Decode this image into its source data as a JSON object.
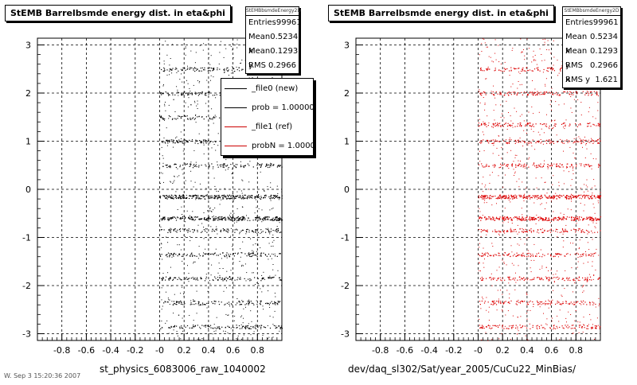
{
  "chart_data": [
    {
      "type": "scatter",
      "title": "StEMB Barrelbsmde energy dist. in eta&phi",
      "xlabel": "st_physics_6083006_raw_1040002",
      "ylabel": "",
      "xlim": [
        -1.0,
        1.0
      ],
      "ylim": [
        -3.14,
        3.14
      ],
      "x_ticks": [
        "-0.8",
        "-0.6",
        "-0.4",
        "-0.2",
        "-0",
        "0.2",
        "0.4",
        "0.6",
        "0.8"
      ],
      "y_ticks": [
        "-3",
        "-2",
        "-1",
        "0",
        "1",
        "2",
        "3"
      ],
      "grid": true,
      "color": "#000000",
      "series": [
        {
          "name": "_file0 (new)",
          "x_range": [
            0.0,
            1.0
          ],
          "y_range": [
            -3.14,
            3.14
          ],
          "bands_y": [
            -2.85,
            -2.35,
            -1.85,
            -1.35,
            -0.85,
            -0.6,
            -0.15,
            0.5,
            1.0,
            1.5,
            2.0,
            2.5
          ]
        }
      ],
      "stats": {
        "name": "StEMBbsmdeEnergy2D",
        "rows": [
          [
            "Entries",
            "99961"
          ],
          [
            "Mean x",
            "0.5234"
          ],
          [
            "Mean y",
            "0.1293"
          ],
          [
            "RMS x",
            "0.2966"
          ]
        ]
      },
      "legend": [
        {
          "label": "_file0 (new)",
          "color": "#000000"
        },
        {
          "label": "prob = 1.000000",
          "color": "#000000"
        },
        {
          "label": "_file1 (ref)",
          "color": "#cc0000"
        },
        {
          "label": "probN = 1.000000",
          "color": "#cc0000"
        }
      ]
    },
    {
      "type": "scatter",
      "title": "StEMB Barrelbsmde energy dist. in eta&phi",
      "xlabel": "dev/daq_sl302/Sat/year_2005/CuCu22_MinBias/",
      "ylabel": "",
      "xlim": [
        -1.0,
        1.0
      ],
      "ylim": [
        -3.14,
        3.14
      ],
      "x_ticks": [
        "-0.8",
        "-0.6",
        "-0.4",
        "-0.2",
        "-0",
        "0.2",
        "0.4",
        "0.6",
        "0.8"
      ],
      "y_ticks": [
        "-3",
        "-2",
        "-1",
        "0",
        "1",
        "2",
        "3"
      ],
      "grid": true,
      "color": "#dd0000",
      "series": [
        {
          "name": "_file1 (ref)",
          "x_range": [
            0.0,
            1.0
          ],
          "y_range": [
            -3.14,
            3.14
          ],
          "bands_y": [
            -2.85,
            -2.35,
            -1.85,
            -1.35,
            -0.85,
            -0.6,
            -0.15,
            0.5,
            1.0,
            1.35,
            2.0,
            2.5
          ]
        }
      ],
      "stats": {
        "name": "StEMBbsmdeEnergy2D",
        "rows": [
          [
            "Entries",
            "99961"
          ],
          [
            "Mean x",
            "0.5234"
          ],
          [
            "Mean y",
            "0.1293"
          ],
          [
            "RMS x",
            "0.2966"
          ],
          [
            "RMS y",
            "1.621"
          ]
        ]
      }
    }
  ],
  "footer": "W. Sep  3 15:20:36 2007"
}
